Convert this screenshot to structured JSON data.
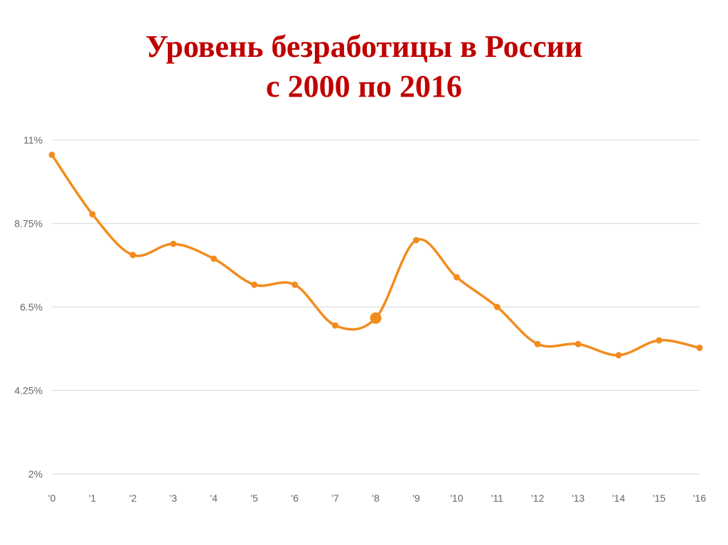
{
  "title": {
    "line1": "Уровень безработицы в России",
    "line2": "с 2000 по 2016"
  },
  "colors": {
    "title": "#c00000",
    "line": "#f28c1e",
    "grid": "#dddddd",
    "axis_text": "#666666"
  },
  "chart_data": {
    "type": "line",
    "title": "Уровень безработицы в России с 2000 по 2016",
    "xlabel": "",
    "ylabel": "",
    "x_tick_labels": [
      "'0",
      "'1",
      "'2",
      "'3",
      "'4",
      "'5",
      "'6",
      "'7",
      "'8",
      "'9",
      "'10",
      "'11",
      "'12",
      "'13",
      "'14",
      "'15",
      "'16"
    ],
    "y_tick_labels": [
      "11%",
      "8.75%",
      "6.5%",
      "4.25%",
      "2%"
    ],
    "y_ticks": [
      11,
      8.75,
      6.5,
      4.25,
      2
    ],
    "ylim": [
      2,
      11
    ],
    "grid": true,
    "legend": "none",
    "highlighted_point": "'8",
    "series": [
      {
        "values": [
          10.6,
          9.0,
          7.9,
          8.2,
          7.8,
          7.1,
          7.1,
          6.0,
          6.2,
          8.3,
          7.3,
          6.5,
          5.5,
          5.5,
          5.2,
          5.6,
          5.4
        ]
      }
    ]
  }
}
